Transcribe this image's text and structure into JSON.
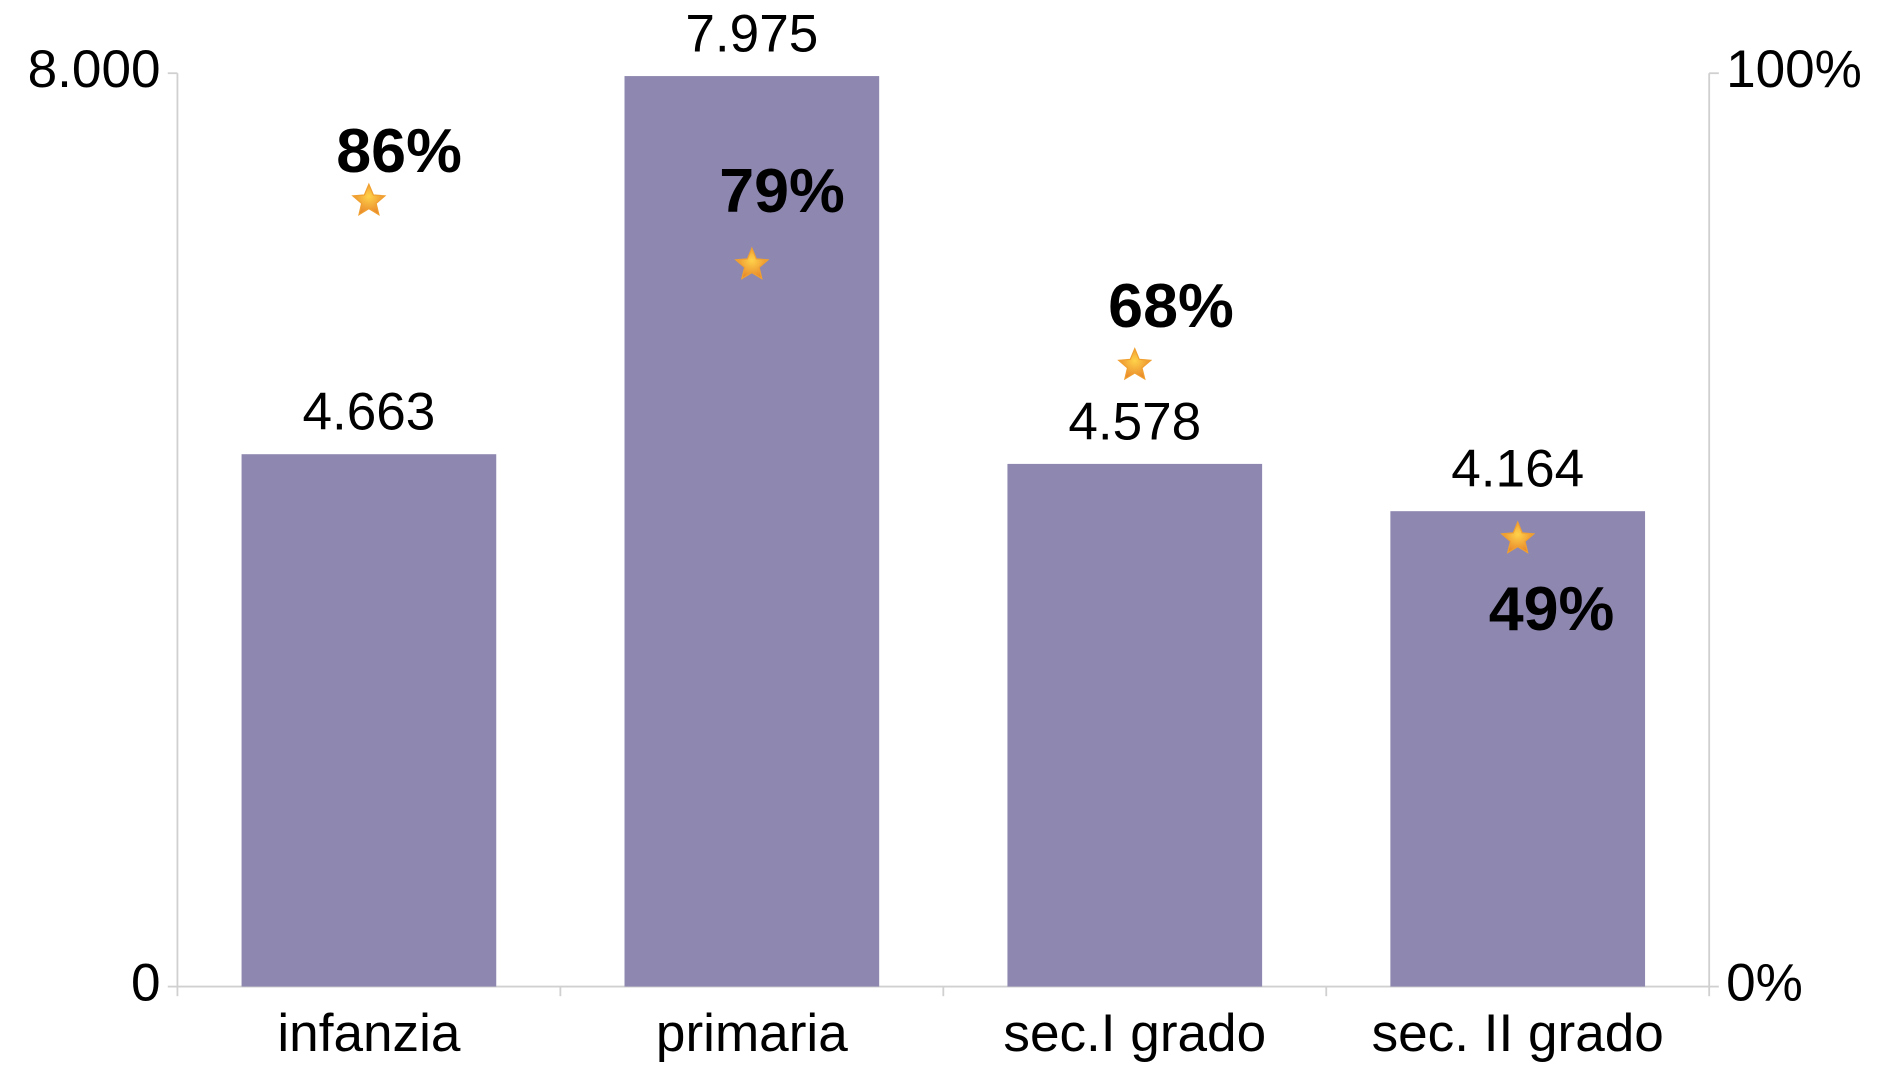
{
  "chart_data": {
    "type": "bar",
    "categories": [
      "infanzia",
      "primaria",
      "sec.I grado",
      "sec. II grado"
    ],
    "series": [
      {
        "type": "bar",
        "color": "#8e88b0",
        "values": [
          4663,
          7975,
          4578,
          4164
        ],
        "value_labels": [
          "4.663",
          "7.975",
          "4.578",
          "4.164"
        ]
      },
      {
        "type": "scatter",
        "axis": "y2",
        "color": "#f0a030",
        "values": [
          86,
          79,
          68,
          49
        ],
        "value_labels": [
          "86%",
          "79%",
          "68%",
          "49%"
        ]
      }
    ],
    "ylim": [
      0,
      8000
    ],
    "yticks": [
      0,
      {
        "value": 8000,
        "label": "8.000"
      }
    ],
    "y2lim": [
      0,
      100
    ],
    "y2ticks": [
      {
        "value": 0,
        "label": "0%"
      },
      {
        "value": 100,
        "label": "100%"
      }
    ]
  }
}
